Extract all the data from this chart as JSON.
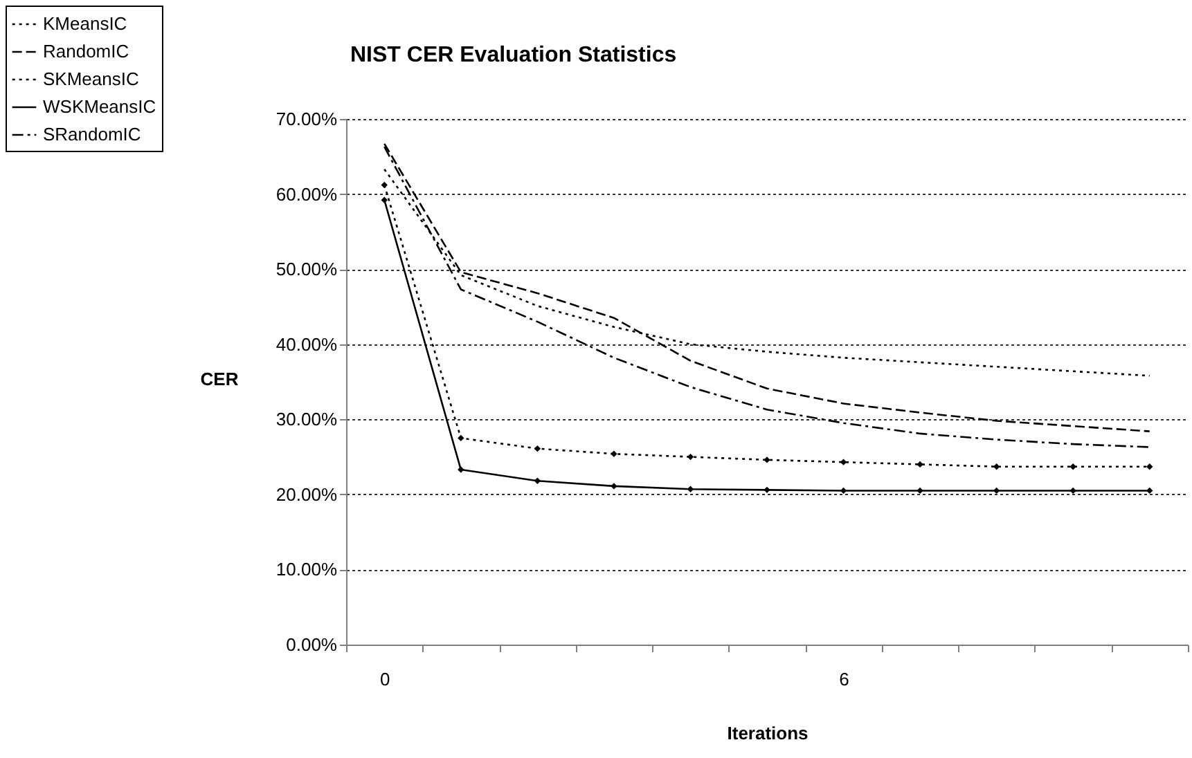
{
  "chart_data": {
    "type": "line",
    "title": "NIST CER Evaluation Statistics",
    "xlabel": "Iterations",
    "ylabel": "CER",
    "categories": [
      "0",
      null,
      null,
      null,
      null,
      null,
      "6",
      null,
      null,
      null,
      null
    ],
    "ylim": [
      0,
      70
    ],
    "yticks": [
      {
        "value": 0,
        "label": "0.00%"
      },
      {
        "value": 10,
        "label": "10.00%"
      },
      {
        "value": 20,
        "label": "20.00%"
      },
      {
        "value": 30,
        "label": "30.00%"
      },
      {
        "value": 40,
        "label": "40.00%"
      },
      {
        "value": 50,
        "label": "50.00%"
      },
      {
        "value": 60,
        "label": "60.00%"
      },
      {
        "value": 70,
        "label": "70.00%"
      }
    ],
    "grid": "y",
    "legend": "top left",
    "series": [
      {
        "name": "KMeansIC",
        "color": "#000000",
        "line_style": "dotted",
        "marker": "none",
        "values": [
          63.3,
          49.2,
          45.1,
          42.3,
          40.0,
          39.0,
          38.2,
          37.6,
          37.0,
          36.4,
          35.8
        ]
      },
      {
        "name": "RandomIC",
        "color": "#000000",
        "line_style": "dashed",
        "marker": "none",
        "values": [
          66.7,
          49.6,
          46.8,
          43.5,
          37.8,
          34.1,
          32.1,
          30.9,
          29.8,
          29.1,
          28.4
        ]
      },
      {
        "name": "SKMeansIC",
        "color": "#000000",
        "line_style": "dotted",
        "marker": "diamond",
        "values": [
          61.2,
          27.5,
          26.1,
          25.4,
          25.0,
          24.6,
          24.3,
          24.0,
          23.7,
          23.7,
          23.7
        ]
      },
      {
        "name": "WSKMeansIC",
        "color": "#000000",
        "line_style": "solid",
        "marker": "diamond",
        "values": [
          59.2,
          23.3,
          21.8,
          21.1,
          20.7,
          20.6,
          20.5,
          20.5,
          20.5,
          20.5,
          20.5
        ]
      },
      {
        "name": "SRandomIC",
        "color": "#000000",
        "line_style": "dashdot",
        "marker": "none",
        "values": [
          66.3,
          47.3,
          43.0,
          38.2,
          34.3,
          31.3,
          29.5,
          28.1,
          27.3,
          26.7,
          26.3
        ]
      }
    ]
  }
}
